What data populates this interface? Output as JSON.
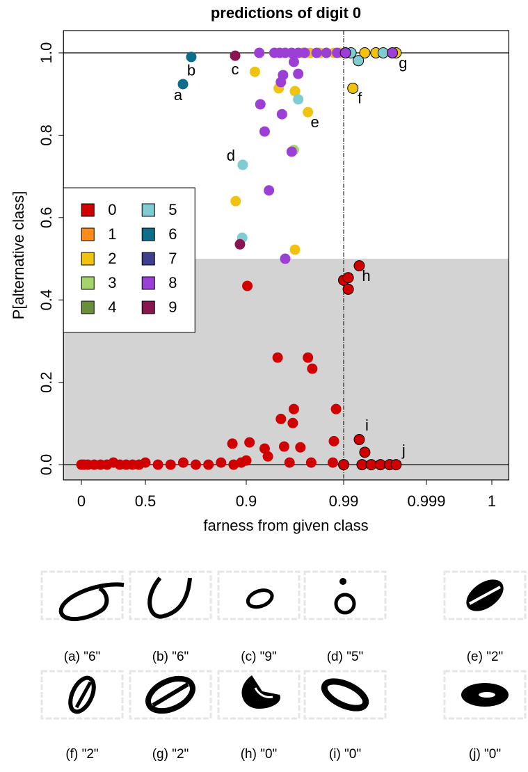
{
  "chart_data": {
    "type": "scatter",
    "title": "predictions of digit 0",
    "x_label": "farness from given class",
    "y_label": "P[alternative class]",
    "xlim": [
      -0.14,
      1.00026
    ],
    "ylim": [
      -0.037,
      1.054
    ],
    "xticks": [
      0,
      0.5,
      0.9,
      0.99,
      0.999,
      1
    ],
    "yticks": [
      {
        "value": 0,
        "label": "0.0"
      },
      0.2,
      0.4,
      0.6,
      0.8,
      {
        "value": 1,
        "label": "1.0"
      }
    ],
    "shade_below": 0.5,
    "shade_color": "#d3d3d3",
    "hlines": [
      0,
      1
    ],
    "vline": 0.99,
    "legend": "left",
    "series": [
      {
        "name": "0",
        "color": "#d10000",
        "x": [
          0,
          0.02,
          0.05,
          0.1,
          0.15,
          0.2,
          0.25,
          0.3,
          0.35,
          0.4,
          0.45,
          0.5,
          0.55,
          0.6,
          0.65,
          0.7,
          0.75,
          0.8,
          0.85,
          0.88,
          0.9,
          0.92,
          0.94,
          0.96,
          0.98,
          0.99,
          0.992,
          0.993,
          0.994,
          0.995,
          0.901,
          0.929,
          0.957,
          0.961,
          0.932,
          0.943,
          0.944,
          0.983,
          0.845,
          0.903,
          0.917,
          0.935,
          0.95,
          0.981,
          0.99,
          0.9905,
          0.9905,
          0.9917,
          0.9917,
          0.9923,
          0.9957
        ],
        "values": [
          0,
          0,
          0,
          0,
          0,
          0,
          0.005,
          0,
          0,
          0,
          0,
          0.005,
          0,
          0,
          0.005,
          0,
          0,
          0.005,
          0,
          0.005,
          0.01,
          0.02,
          0.005,
          0.005,
          0.005,
          0,
          0,
          0,
          0,
          0,
          0.434,
          0.26,
          0.26,
          0.233,
          0.111,
          0.101,
          0.135,
          0.135,
          0.051,
          0.054,
          0.039,
          0.044,
          0.042,
          0.057,
          0.448,
          0.454,
          0.426,
          0.483,
          0.061,
          0.03,
          0
        ]
      },
      {
        "name": "1",
        "color": "#ff8c1a",
        "x": [],
        "values": []
      },
      {
        "name": "2",
        "color": "#f0c30f",
        "x": [
          0.908,
          0.858,
          0.93,
          0.945,
          0.957,
          0.945,
          0.991,
          0.9957,
          0.952,
          0.959,
          0.968,
          0.974,
          0.981,
          0.987,
          0.9923,
          0.9935
        ],
        "values": [
          0.954,
          0.64,
          0.914,
          0.907,
          0.856,
          0.522,
          0.914,
          1,
          1,
          1,
          1,
          1,
          1,
          1,
          1,
          1
        ]
      },
      {
        "name": "3",
        "color": "#a5d46a",
        "x": [
          0.944
        ],
        "values": [
          0.764
        ]
      },
      {
        "name": "4",
        "color": "#6b8e3a",
        "x": [],
        "values": []
      },
      {
        "name": "5",
        "color": "#7fcdd3",
        "x": [
          0.886,
          0.884,
          0.948,
          0.9916,
          0.9908,
          0.9943
        ],
        "values": [
          0.728,
          0.551,
          0.887,
          0.981,
          1,
          1
        ]
      },
      {
        "name": "6",
        "color": "#0d6e8c",
        "x": [
          0.649,
          0.682
        ],
        "values": [
          0.924,
          0.99
        ]
      },
      {
        "name": "7",
        "color": "#3f3f8f",
        "x": [],
        "values": []
      },
      {
        "name": "8",
        "color": "#9c3fd6",
        "x": [
          0.912,
          0.926,
          0.931,
          0.936,
          0.942,
          0.948,
          0.954,
          0.965,
          0.974,
          0.984,
          0.9902,
          0.9953,
          0.944,
          0.934,
          0.948,
          0.932,
          0.913,
          0.933,
          0.917,
          0.942,
          0.921,
          0.936
        ],
        "values": [
          1,
          1,
          1,
          1,
          1,
          1,
          1,
          1,
          1,
          1,
          1,
          1,
          0.978,
          0.946,
          0.949,
          0.929,
          0.875,
          0.851,
          0.809,
          0.76,
          0.666,
          0.5
        ]
      },
      {
        "name": "9",
        "color": "#8b1552",
        "x": [
          0.856,
          0.875
        ],
        "values": [
          0.993,
          0.535
        ]
      }
    ],
    "annotations": [
      {
        "text": "a",
        "x": 0.649,
        "y": 0.924,
        "position": "below-left"
      },
      {
        "text": "b",
        "x": 0.682,
        "y": 0.99,
        "position": "below"
      },
      {
        "text": "c",
        "x": 0.856,
        "y": 0.993,
        "position": "below"
      },
      {
        "text": "d",
        "x": 0.886,
        "y": 0.728,
        "position": "upper-left"
      },
      {
        "text": "e",
        "x": 0.957,
        "y": 0.856,
        "position": "below-right"
      },
      {
        "text": "f",
        "x": 0.991,
        "y": 0.914,
        "position": "below-right"
      },
      {
        "text": "g",
        "x": 0.9957,
        "y": 1,
        "position": "below-right"
      },
      {
        "text": "h",
        "x": 0.9917,
        "y": 0.483,
        "position": "below-right"
      },
      {
        "text": "i",
        "x": 0.9917,
        "y": 0.061,
        "position": "above-right"
      },
      {
        "text": "j",
        "x": 0.9957,
        "y": 0,
        "position": "above-right"
      }
    ]
  },
  "thumbnail_captions": [
    "(a) \"6\"",
    "(b) \"6\"",
    "(c) \"9\"",
    "(d) \"5\"",
    "(e) \"2\"",
    "(f) \"2\"",
    "(g) \"2\"",
    "(h) \"0\"",
    "(i) \"0\"",
    "(j) \"0\""
  ]
}
